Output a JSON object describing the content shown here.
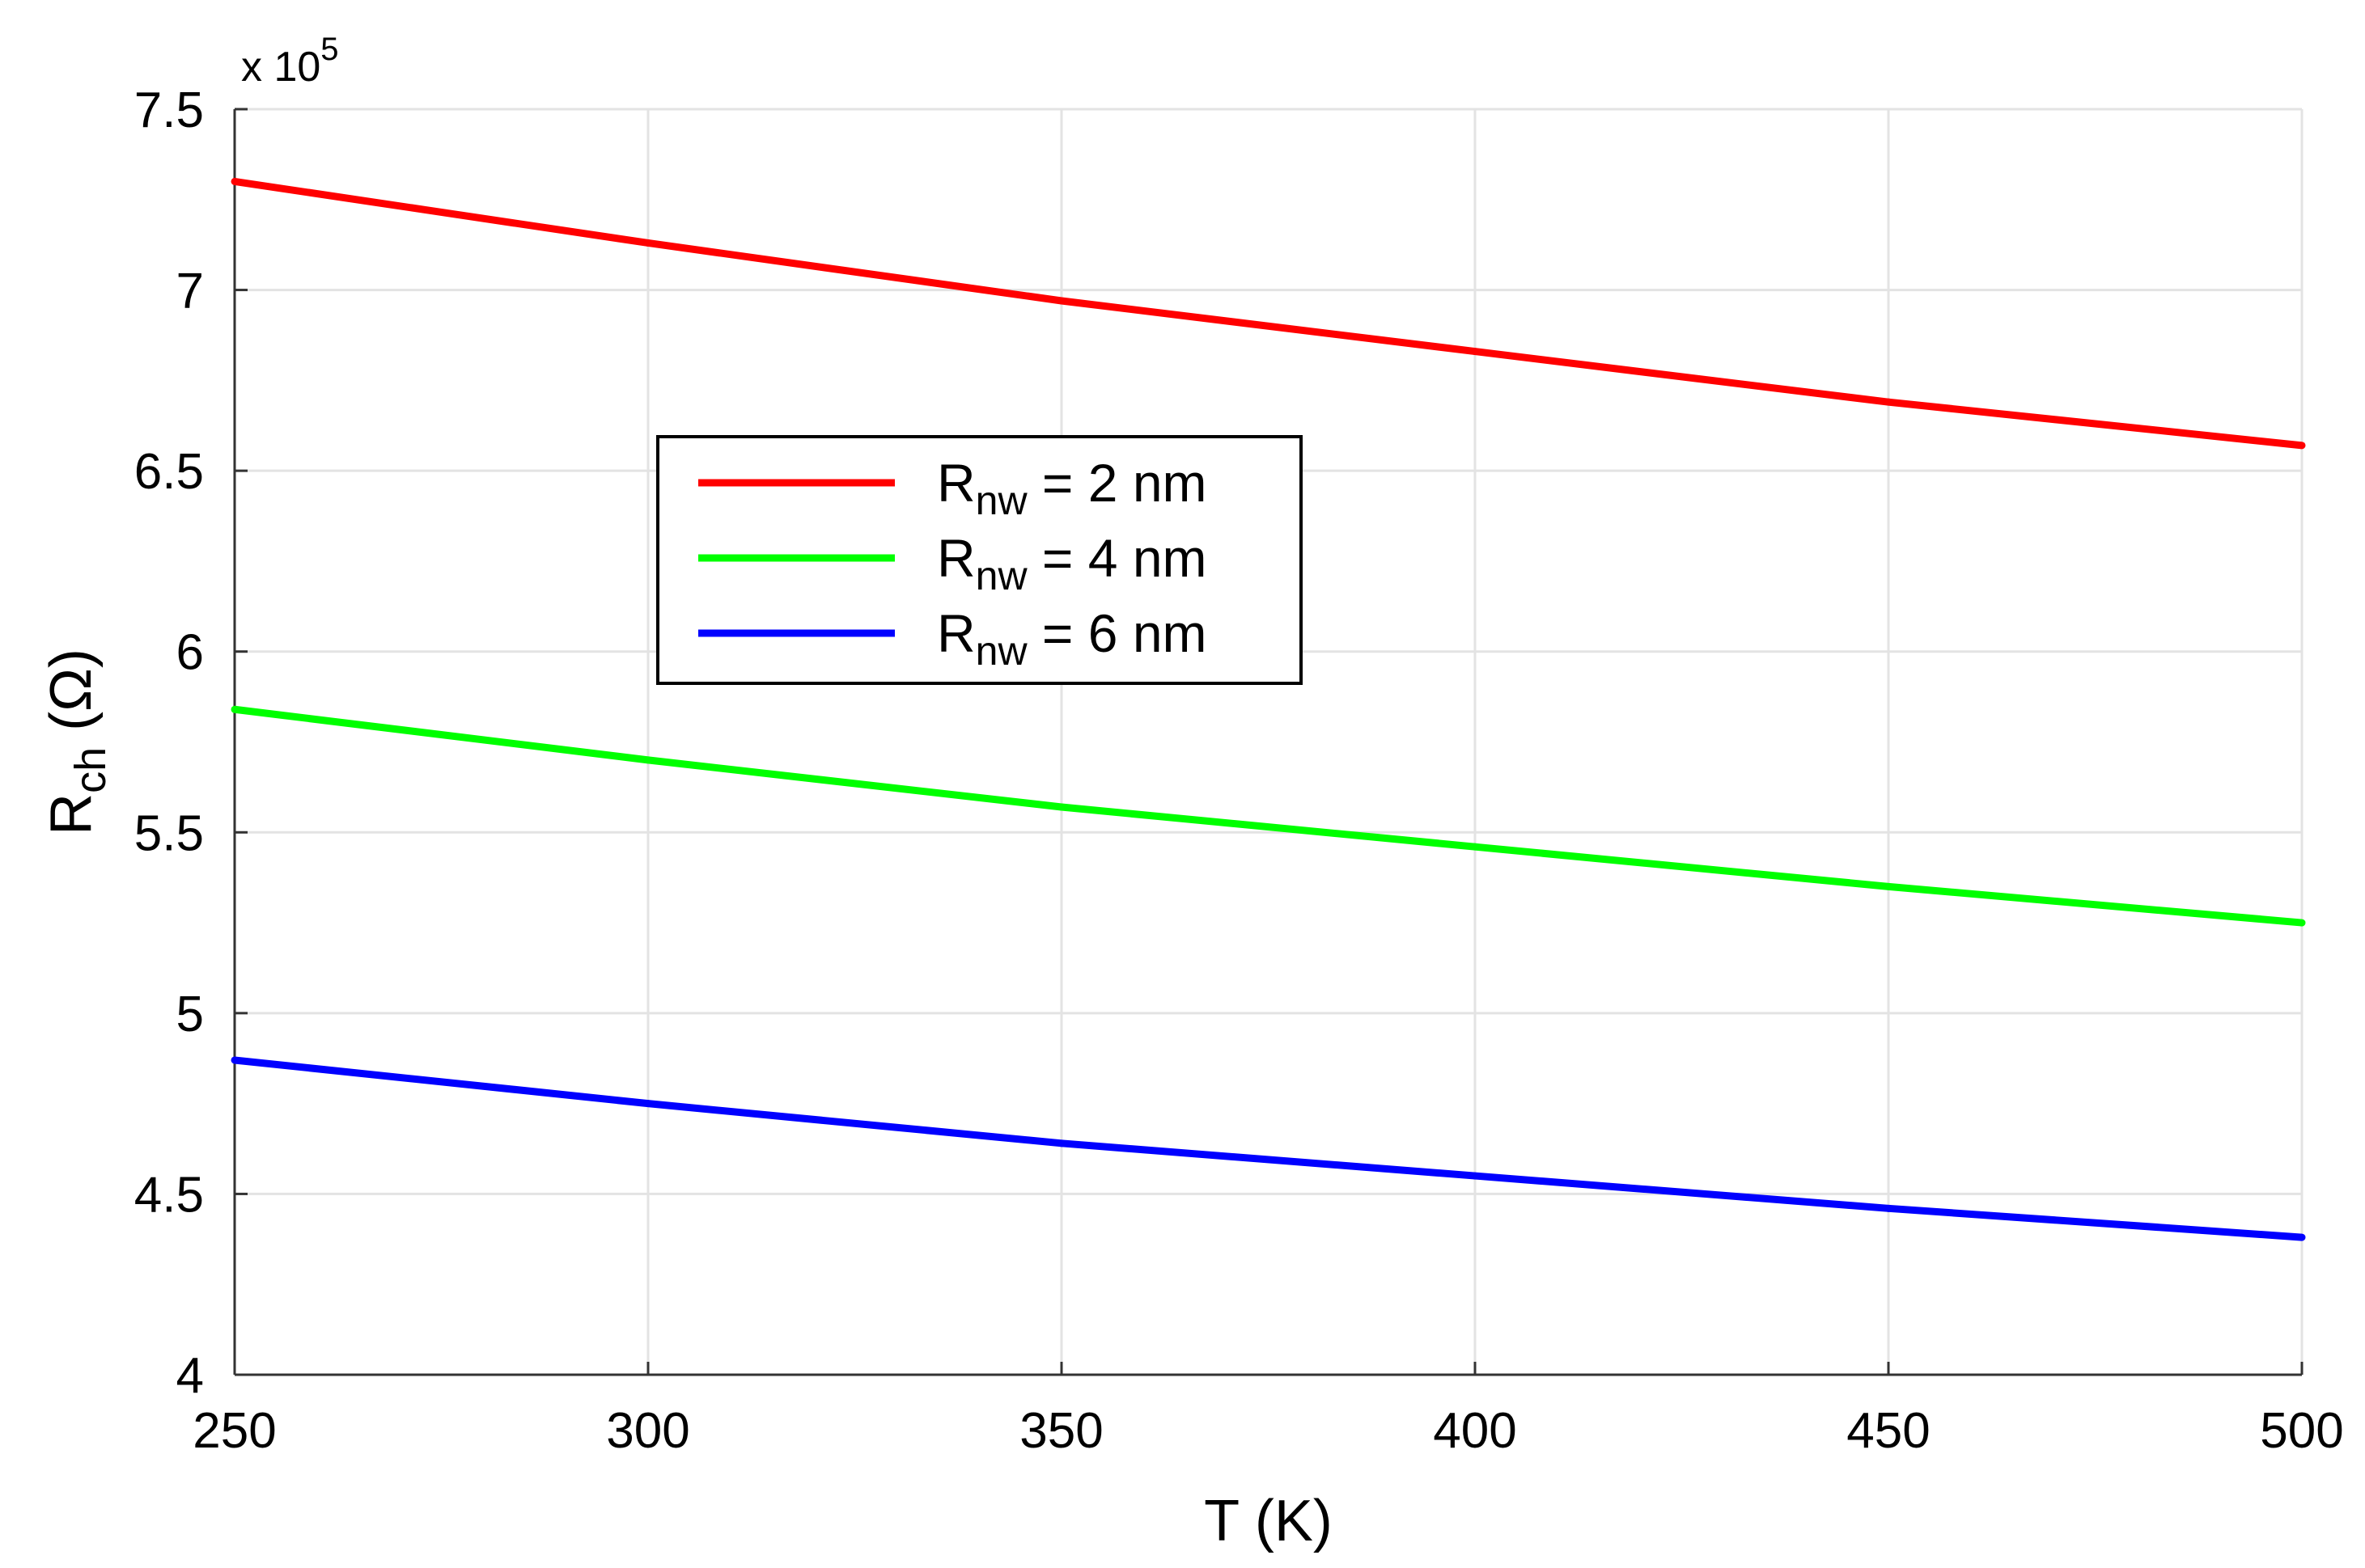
{
  "chart_data": {
    "type": "line",
    "xlabel": "T (K)",
    "ylabel_main": "R",
    "ylabel_sub": "ch",
    "ylabel_unit": " (Ω)",
    "y_multiplier_base": "x 10",
    "y_multiplier_exp": "5",
    "xlim": [
      250,
      500
    ],
    "ylim": [
      4,
      7.5
    ],
    "x_ticks": [
      "250",
      "300",
      "350",
      "400",
      "450",
      "500"
    ],
    "y_ticks": [
      "4",
      "4.5",
      "5",
      "5.5",
      "6",
      "6.5",
      "7",
      "7.5"
    ],
    "x_tick_values": [
      250,
      300,
      350,
      400,
      450,
      500
    ],
    "y_tick_values": [
      4,
      4.5,
      5,
      5.5,
      6,
      6.5,
      7,
      7.5
    ],
    "grid": true,
    "legend_position": "center-left",
    "x": [
      250,
      300,
      350,
      400,
      450,
      500
    ],
    "series": [
      {
        "name_main": "R",
        "name_sub": "nw",
        "name_rest": " = 2 nm",
        "color": "#ff0000",
        "values": [
          7.3,
          7.13,
          6.97,
          6.83,
          6.69,
          6.57
        ]
      },
      {
        "name_main": "R",
        "name_sub": "nw",
        "name_rest": " = 4 nm",
        "color": "#00ff00",
        "values": [
          5.84,
          5.7,
          5.57,
          5.46,
          5.35,
          5.25
        ]
      },
      {
        "name_main": "R",
        "name_sub": "nw",
        "name_rest": " = 6 nm",
        "color": "#0000ff",
        "values": [
          4.87,
          4.75,
          4.64,
          4.55,
          4.46,
          4.38
        ]
      }
    ]
  }
}
